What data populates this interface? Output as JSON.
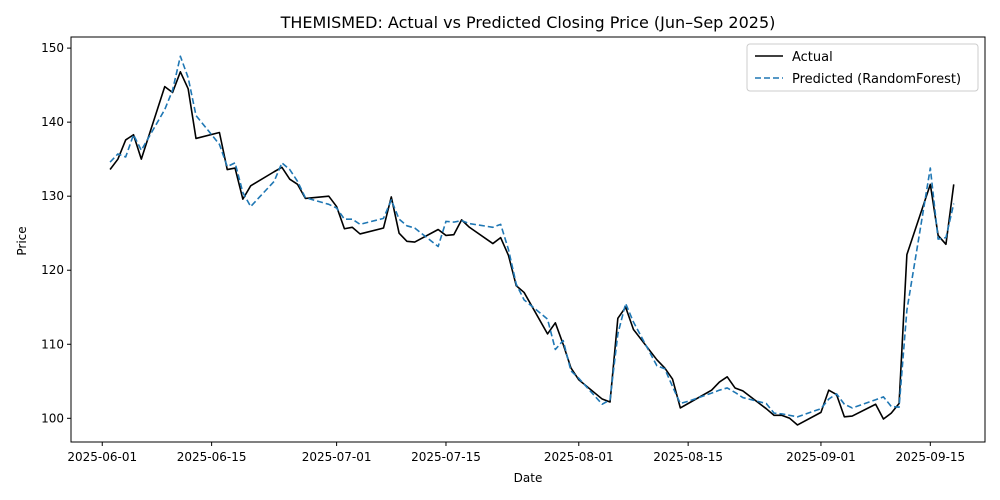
{
  "chart_data": {
    "type": "line",
    "title": "THEMISMED: Actual vs Predicted Closing Price (Jun–Sep 2025)",
    "xlabel": "Date",
    "ylabel": "Price",
    "xlim": [
      "2025-05-28",
      "2025-09-22"
    ],
    "ylim": [
      96.8,
      151.5
    ],
    "x_ticks": [
      "2025-06-01",
      "2025-06-15",
      "2025-07-01",
      "2025-07-15",
      "2025-08-01",
      "2025-08-15",
      "2025-09-01",
      "2025-09-15"
    ],
    "y_ticks": [
      100,
      110,
      120,
      130,
      140,
      150
    ],
    "grid": false,
    "legend_position": "top-right",
    "series": [
      {
        "name": "Actual",
        "color": "#000000",
        "style": "solid",
        "points": [
          [
            "2025-06-02",
            133.6
          ],
          [
            "2025-06-03",
            135.0
          ],
          [
            "2025-06-04",
            137.6
          ],
          [
            "2025-06-05",
            138.3
          ],
          [
            "2025-06-06",
            135.0
          ],
          [
            "2025-06-09",
            144.8
          ],
          [
            "2025-06-10",
            144.0
          ],
          [
            "2025-06-11",
            146.8
          ],
          [
            "2025-06-12",
            144.5
          ],
          [
            "2025-06-13",
            137.8
          ],
          [
            "2025-06-16",
            138.6
          ],
          [
            "2025-06-17",
            133.6
          ],
          [
            "2025-06-18",
            133.8
          ],
          [
            "2025-06-19",
            129.6
          ],
          [
            "2025-06-20",
            131.4
          ],
          [
            "2025-06-23",
            133.3
          ],
          [
            "2025-06-24",
            133.9
          ],
          [
            "2025-06-25",
            132.3
          ],
          [
            "2025-06-26",
            131.6
          ],
          [
            "2025-06-27",
            129.7
          ],
          [
            "2025-06-30",
            130.0
          ],
          [
            "2025-07-01",
            128.6
          ],
          [
            "2025-07-02",
            125.6
          ],
          [
            "2025-07-03",
            125.8
          ],
          [
            "2025-07-04",
            124.9
          ],
          [
            "2025-07-07",
            125.7
          ],
          [
            "2025-07-08",
            129.9
          ],
          [
            "2025-07-09",
            125.0
          ],
          [
            "2025-07-10",
            123.9
          ],
          [
            "2025-07-11",
            123.8
          ],
          [
            "2025-07-14",
            125.5
          ],
          [
            "2025-07-15",
            124.7
          ],
          [
            "2025-07-16",
            124.8
          ],
          [
            "2025-07-17",
            126.8
          ],
          [
            "2025-07-18",
            125.8
          ],
          [
            "2025-07-21",
            123.6
          ],
          [
            "2025-07-22",
            124.4
          ],
          [
            "2025-07-23",
            122.0
          ],
          [
            "2025-07-24",
            117.9
          ],
          [
            "2025-07-25",
            117.0
          ],
          [
            "2025-07-28",
            111.4
          ],
          [
            "2025-07-29",
            112.9
          ],
          [
            "2025-07-30",
            110.0
          ],
          [
            "2025-07-31",
            106.8
          ],
          [
            "2025-08-01",
            105.2
          ],
          [
            "2025-08-04",
            102.6
          ],
          [
            "2025-08-05",
            102.2
          ],
          [
            "2025-08-06",
            113.5
          ],
          [
            "2025-08-07",
            115.0
          ],
          [
            "2025-08-08",
            112.0
          ],
          [
            "2025-08-11",
            107.9
          ],
          [
            "2025-08-12",
            106.8
          ],
          [
            "2025-08-13",
            105.3
          ],
          [
            "2025-08-14",
            101.4
          ],
          [
            "2025-08-15",
            102.0
          ],
          [
            "2025-08-18",
            103.8
          ],
          [
            "2025-08-19",
            104.9
          ],
          [
            "2025-08-20",
            105.6
          ],
          [
            "2025-08-21",
            104.1
          ],
          [
            "2025-08-22",
            103.7
          ],
          [
            "2025-08-25",
            101.3
          ],
          [
            "2025-08-26",
            100.4
          ],
          [
            "2025-08-27",
            100.4
          ],
          [
            "2025-08-28",
            100.0
          ],
          [
            "2025-08-29",
            99.1
          ],
          [
            "2025-09-01",
            100.8
          ],
          [
            "2025-09-02",
            103.8
          ],
          [
            "2025-09-03",
            103.2
          ],
          [
            "2025-09-04",
            100.2
          ],
          [
            "2025-09-05",
            100.3
          ],
          [
            "2025-09-08",
            101.9
          ],
          [
            "2025-09-09",
            99.9
          ],
          [
            "2025-09-10",
            100.7
          ],
          [
            "2025-09-11",
            102.0
          ],
          [
            "2025-09-12",
            122.1
          ],
          [
            "2025-09-15",
            131.6
          ],
          [
            "2025-09-16",
            124.7
          ],
          [
            "2025-09-17",
            123.5
          ],
          [
            "2025-09-18",
            131.6
          ]
        ]
      },
      {
        "name": "Predicted (RandomForest)",
        "color": "#1f77b4",
        "style": "dashed",
        "points": [
          [
            "2025-06-02",
            134.6
          ],
          [
            "2025-06-03",
            135.7
          ],
          [
            "2025-06-04",
            135.3
          ],
          [
            "2025-06-05",
            138.3
          ],
          [
            "2025-06-06",
            136.2
          ],
          [
            "2025-06-09",
            141.7
          ],
          [
            "2025-06-10",
            144.3
          ],
          [
            "2025-06-11",
            148.9
          ],
          [
            "2025-06-12",
            146.0
          ],
          [
            "2025-06-13",
            140.9
          ],
          [
            "2025-06-16",
            137.0
          ],
          [
            "2025-06-17",
            134.0
          ],
          [
            "2025-06-18",
            134.5
          ],
          [
            "2025-06-19",
            130.5
          ],
          [
            "2025-06-20",
            128.6
          ],
          [
            "2025-06-23",
            132.0
          ],
          [
            "2025-06-24",
            134.5
          ],
          [
            "2025-06-25",
            133.6
          ],
          [
            "2025-06-26",
            132.0
          ],
          [
            "2025-06-27",
            129.8
          ],
          [
            "2025-06-30",
            128.9
          ],
          [
            "2025-07-01",
            128.4
          ],
          [
            "2025-07-02",
            126.9
          ],
          [
            "2025-07-03",
            126.9
          ],
          [
            "2025-07-04",
            126.2
          ],
          [
            "2025-07-07",
            127.0
          ],
          [
            "2025-07-08",
            129.5
          ],
          [
            "2025-07-09",
            126.9
          ],
          [
            "2025-07-10",
            126.0
          ],
          [
            "2025-07-11",
            125.7
          ],
          [
            "2025-07-14",
            123.2
          ],
          [
            "2025-07-15",
            126.6
          ],
          [
            "2025-07-16",
            126.5
          ],
          [
            "2025-07-17",
            126.7
          ],
          [
            "2025-07-18",
            126.3
          ],
          [
            "2025-07-21",
            125.8
          ],
          [
            "2025-07-22",
            126.2
          ],
          [
            "2025-07-23",
            122.8
          ],
          [
            "2025-07-24",
            118.1
          ],
          [
            "2025-07-25",
            116.0
          ],
          [
            "2025-07-28",
            113.4
          ],
          [
            "2025-07-29",
            109.3
          ],
          [
            "2025-07-30",
            110.5
          ],
          [
            "2025-07-31",
            106.4
          ],
          [
            "2025-08-01",
            105.4
          ],
          [
            "2025-08-04",
            101.9
          ],
          [
            "2025-08-05",
            102.5
          ],
          [
            "2025-08-06",
            111.4
          ],
          [
            "2025-08-07",
            115.5
          ],
          [
            "2025-08-08",
            113.0
          ],
          [
            "2025-08-11",
            107.1
          ],
          [
            "2025-08-12",
            106.7
          ],
          [
            "2025-08-13",
            104.3
          ],
          [
            "2025-08-14",
            102.0
          ],
          [
            "2025-08-15",
            102.3
          ],
          [
            "2025-08-18",
            103.4
          ],
          [
            "2025-08-19",
            103.8
          ],
          [
            "2025-08-20",
            104.1
          ],
          [
            "2025-08-21",
            103.5
          ],
          [
            "2025-08-22",
            102.8
          ],
          [
            "2025-08-25",
            102.0
          ],
          [
            "2025-08-26",
            100.7
          ],
          [
            "2025-08-27",
            100.6
          ],
          [
            "2025-08-28",
            100.4
          ],
          [
            "2025-08-29",
            100.2
          ],
          [
            "2025-09-01",
            101.3
          ],
          [
            "2025-09-02",
            102.6
          ],
          [
            "2025-09-03",
            103.3
          ],
          [
            "2025-09-04",
            101.9
          ],
          [
            "2025-09-05",
            101.4
          ],
          [
            "2025-09-08",
            102.5
          ],
          [
            "2025-09-09",
            102.9
          ],
          [
            "2025-09-10",
            101.6
          ],
          [
            "2025-09-11",
            101.5
          ],
          [
            "2025-09-12",
            114.6
          ],
          [
            "2025-09-15",
            133.8
          ],
          [
            "2025-09-16",
            124.2
          ],
          [
            "2025-09-17",
            124.4
          ],
          [
            "2025-09-18",
            129.0
          ]
        ]
      }
    ]
  }
}
